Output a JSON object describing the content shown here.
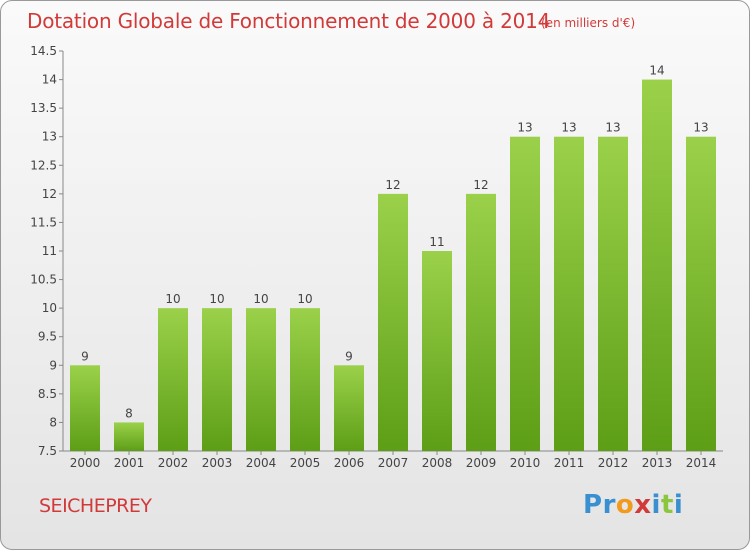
{
  "chart_data": {
    "type": "bar",
    "title": "Dotation Globale de Fonctionnement de 2000 à 2014",
    "subtitle": "(en milliers d'€)",
    "categories": [
      "2000",
      "2001",
      "2002",
      "2003",
      "2004",
      "2005",
      "2006",
      "2007",
      "2008",
      "2009",
      "2010",
      "2011",
      "2012",
      "2013",
      "2014"
    ],
    "values": [
      9,
      8,
      10,
      10,
      10,
      10,
      9,
      12,
      11,
      12,
      13,
      13,
      13,
      14,
      13
    ],
    "ylim": [
      7.5,
      14.5
    ],
    "yticks": [
      "7.5",
      "8",
      "8.5",
      "9",
      "9.5",
      "10",
      "10.5",
      "11",
      "11.5",
      "12",
      "12.5",
      "13",
      "13.5",
      "14",
      "14.5"
    ],
    "grid": false,
    "bar_color": "#7cba2e"
  },
  "commune": "SEICHEPREY",
  "logo": {
    "letters": [
      {
        "ch": "P",
        "color": "#3a8fd0"
      },
      {
        "ch": "r",
        "color": "#3a8fd0"
      },
      {
        "ch": "o",
        "color": "#f29a1e"
      },
      {
        "ch": "x",
        "color": "#d23a3a"
      },
      {
        "ch": "i",
        "color": "#3a8fd0"
      },
      {
        "ch": "t",
        "color": "#8cc63f"
      },
      {
        "ch": "i",
        "color": "#3a8fd0"
      }
    ]
  }
}
